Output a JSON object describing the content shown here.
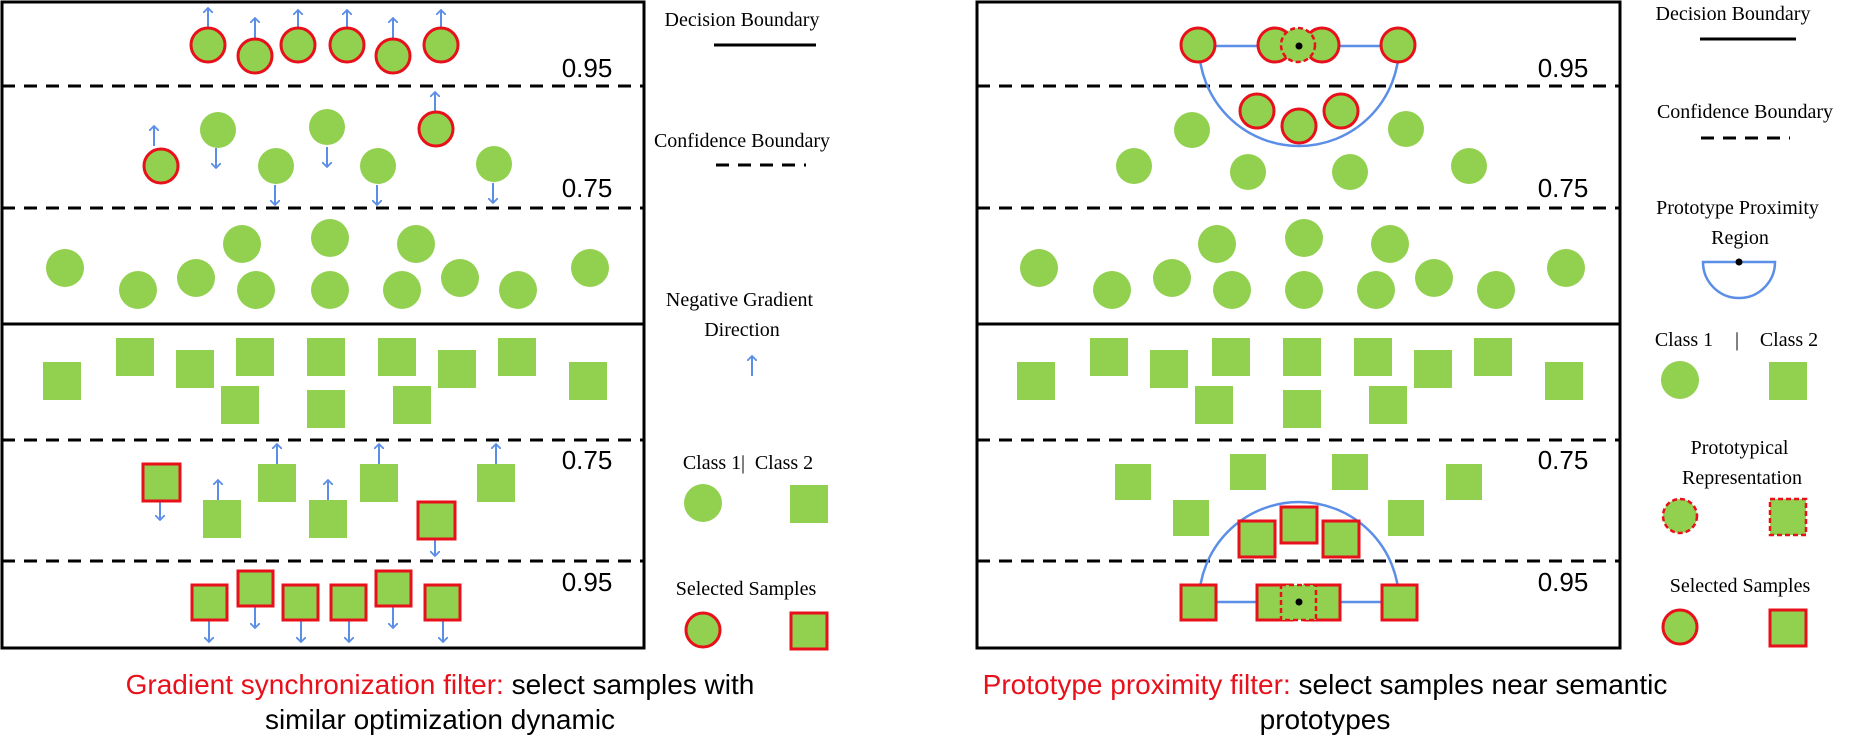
{
  "colors": {
    "fill": "#92d050",
    "selected_border": "#e8101a",
    "arrow": "#5b8ee6",
    "line": "#000000",
    "caption_red": "#e8101a"
  },
  "left_panel": {
    "top_threshold": "0.95",
    "upper_threshold": "0.75",
    "lower_threshold": "0.75",
    "bottom_threshold": "0.95"
  },
  "right_panel": {
    "top_threshold": "0.95",
    "upper_threshold": "0.75",
    "lower_threshold": "0.75",
    "bottom_threshold": "0.95"
  },
  "left_legend": {
    "decision_boundary": "Decision Boundary",
    "confidence_boundary": "Confidence Boundary",
    "negative_gradient_line1": "Negative Gradient",
    "negative_gradient_line2": "Direction",
    "class_1": "Class 1",
    "separator": "|",
    "class_2": "Class 2",
    "selected_samples": "Selected Samples"
  },
  "right_legend": {
    "decision_boundary": "Decision Boundary",
    "confidence_boundary": "Confidence Boundary",
    "proximity_line1": "Prototype Proximity",
    "proximity_line2": "Region",
    "class_1": "Class 1",
    "separator": "|",
    "class_2": "Class 2",
    "prototypical_line1": "Prototypical",
    "prototypical_line2": "Representation",
    "selected_samples": "Selected Samples"
  },
  "captions": {
    "left_red": "Gradient synchronization filter:",
    "left_black_1": " select samples with",
    "left_black_2": "similar optimization dynamic",
    "right_red": "Prototype proximity filter:",
    "right_black_1": " select samples near semantic",
    "right_black_2": "prototypes"
  }
}
